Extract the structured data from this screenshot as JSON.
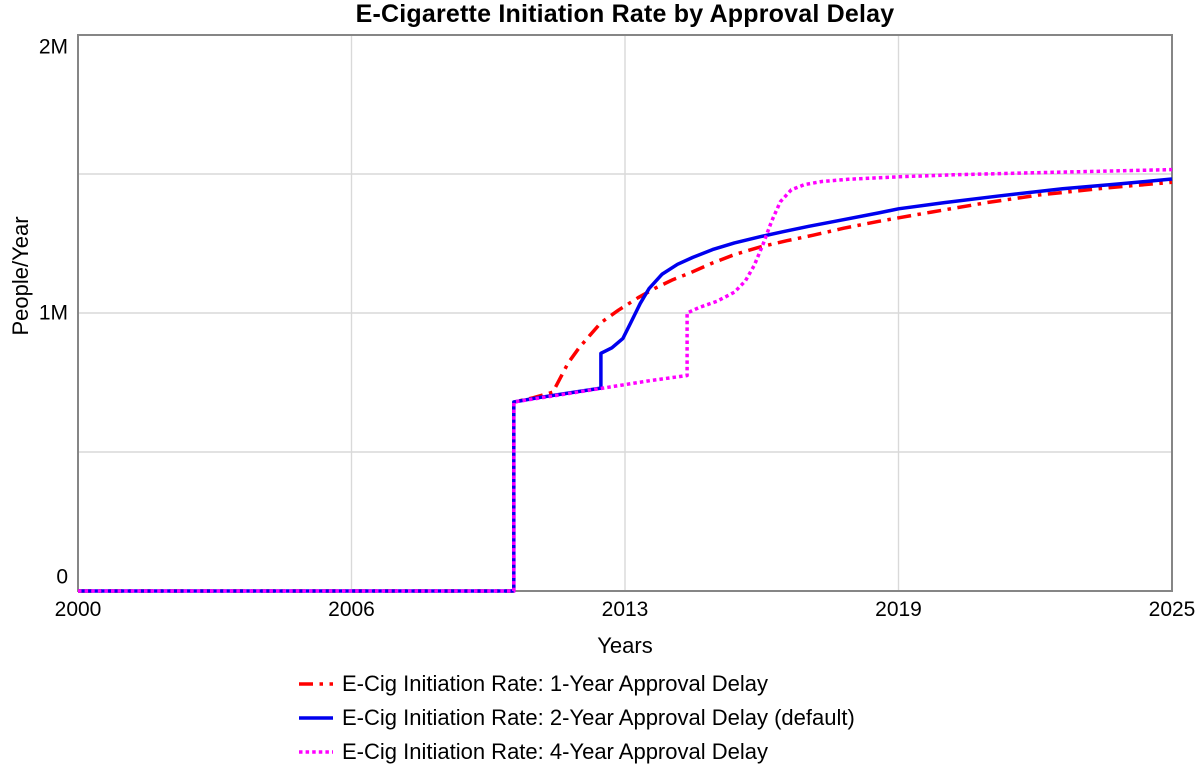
{
  "chart_data": {
    "type": "line",
    "title": "E-Cigarette Initiation Rate by Approval Delay",
    "xlabel": "Years",
    "ylabel": "People/Year",
    "xlim": [
      2000,
      2025
    ],
    "ylim": [
      0,
      2000000
    ],
    "grid": true,
    "legend_position": "bottom-left",
    "x_ticks": [
      {
        "value": 2000,
        "label": "2000"
      },
      {
        "value": 2006.25,
        "label": "2006"
      },
      {
        "value": 2012.5,
        "label": "2013"
      },
      {
        "value": 2018.75,
        "label": "2019"
      },
      {
        "value": 2025,
        "label": "2025"
      }
    ],
    "y_ticks": [
      {
        "value": 0,
        "label": "0"
      },
      {
        "value": 1000000,
        "label": "1M"
      },
      {
        "value": 2000000,
        "label": "2M"
      }
    ],
    "y_gridlines": [
      500000,
      1000000,
      1500000
    ],
    "colors": {
      "grid": "#d9d9d9",
      "axis": "#868686",
      "text": "#000000"
    },
    "series": [
      {
        "key": "1-year",
        "name": "E-Cig Initiation Rate: 1-Year Approval Delay",
        "color": "#ff0000",
        "style": "dash-dot",
        "points": [
          [
            2000,
            0
          ],
          [
            2009.96,
            0
          ],
          [
            2009.96,
            680000
          ],
          [
            2010.4,
            695000
          ],
          [
            2010.85,
            715000
          ],
          [
            2011.0,
            760000
          ],
          [
            2011.2,
            820000
          ],
          [
            2011.45,
            875000
          ],
          [
            2011.7,
            920000
          ],
          [
            2011.95,
            965000
          ],
          [
            2012.35,
            1010000
          ],
          [
            2012.8,
            1055000
          ],
          [
            2013.2,
            1090000
          ],
          [
            2013.6,
            1120000
          ],
          [
            2014.0,
            1145000
          ],
          [
            2014.5,
            1180000
          ],
          [
            2015.0,
            1210000
          ],
          [
            2015.6,
            1238000
          ],
          [
            2016.2,
            1260000
          ],
          [
            2016.8,
            1280000
          ],
          [
            2017.5,
            1305000
          ],
          [
            2018.3,
            1330000
          ],
          [
            2019.5,
            1363000
          ],
          [
            2020.8,
            1398000
          ],
          [
            2022.0,
            1425000
          ],
          [
            2023.5,
            1450000
          ],
          [
            2025,
            1470000
          ]
        ]
      },
      {
        "key": "2-year",
        "name": "E-Cig Initiation Rate: 2-Year Approval Delay (default)",
        "color": "#0000ee",
        "style": "solid",
        "points": [
          [
            2000,
            0
          ],
          [
            2009.96,
            0
          ],
          [
            2009.96,
            680000
          ],
          [
            2010.5,
            695000
          ],
          [
            2011.2,
            712000
          ],
          [
            2011.95,
            730000
          ],
          [
            2011.95,
            855000
          ],
          [
            2012.2,
            875000
          ],
          [
            2012.45,
            908000
          ],
          [
            2012.62,
            962000
          ],
          [
            2012.85,
            1035000
          ],
          [
            2013.05,
            1088000
          ],
          [
            2013.35,
            1140000
          ],
          [
            2013.7,
            1175000
          ],
          [
            2014.05,
            1200000
          ],
          [
            2014.5,
            1228000
          ],
          [
            2015.0,
            1252000
          ],
          [
            2015.6,
            1275000
          ],
          [
            2016.1,
            1292000
          ],
          [
            2016.7,
            1312000
          ],
          [
            2017.3,
            1330000
          ],
          [
            2018.3,
            1360000
          ],
          [
            2018.75,
            1375000
          ],
          [
            2019.8,
            1397000
          ],
          [
            2021.0,
            1420000
          ],
          [
            2022.5,
            1447000
          ],
          [
            2023.7,
            1463000
          ],
          [
            2025,
            1482000
          ]
        ]
      },
      {
        "key": "4-year",
        "name": "E-Cig Initiation Rate: 4-Year Approval Delay",
        "color": "#ff00ff",
        "style": "dotted",
        "points": [
          [
            2000,
            0
          ],
          [
            2009.96,
            0
          ],
          [
            2009.96,
            680000
          ],
          [
            2011.0,
            705000
          ],
          [
            2012.0,
            730000
          ],
          [
            2013.0,
            755000
          ],
          [
            2013.92,
            775000
          ],
          [
            2013.92,
            1000000
          ],
          [
            2014.2,
            1020000
          ],
          [
            2014.6,
            1042000
          ],
          [
            2015.0,
            1075000
          ],
          [
            2015.25,
            1115000
          ],
          [
            2015.45,
            1170000
          ],
          [
            2015.65,
            1245000
          ],
          [
            2015.85,
            1330000
          ],
          [
            2016.05,
            1400000
          ],
          [
            2016.3,
            1443000
          ],
          [
            2016.6,
            1462000
          ],
          [
            2017.0,
            1473000
          ],
          [
            2017.6,
            1481000
          ],
          [
            2018.75,
            1490000
          ],
          [
            2020.0,
            1497000
          ],
          [
            2022.0,
            1505000
          ],
          [
            2025,
            1516000
          ]
        ]
      }
    ]
  }
}
